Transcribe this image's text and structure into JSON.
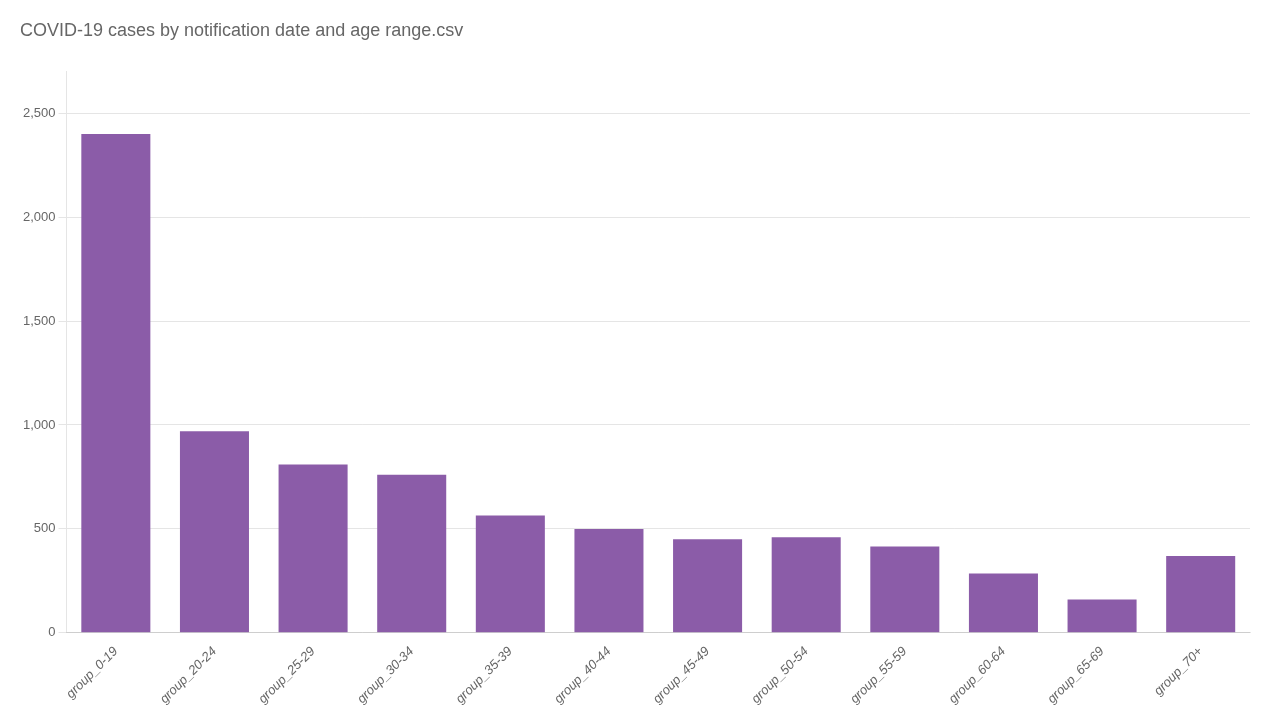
{
  "chart_data": {
    "type": "bar",
    "title": "COVID-19 cases by notification date and age range.csv",
    "categories": [
      "group_0-19",
      "group_20-24",
      "group_25-29",
      "group_30-34",
      "group_35-39",
      "group_40-44",
      "group_45-49",
      "group_50-54",
      "group_55-59",
      "group_60-64",
      "group_65-69",
      "group_70+"
    ],
    "values": [
      2400,
      970,
      810,
      760,
      565,
      500,
      450,
      460,
      415,
      285,
      160,
      370
    ],
    "color": "#8B5CA8",
    "ylim": [
      0,
      2700
    ],
    "yticks": [
      0,
      500,
      {
        "value": 1000,
        "label": "1,000"
      },
      {
        "value": 1500,
        "label": "1,500"
      },
      {
        "value": 2000,
        "label": "2,000"
      },
      {
        "value": 2500,
        "label": "2,500"
      }
    ],
    "grid": true
  }
}
